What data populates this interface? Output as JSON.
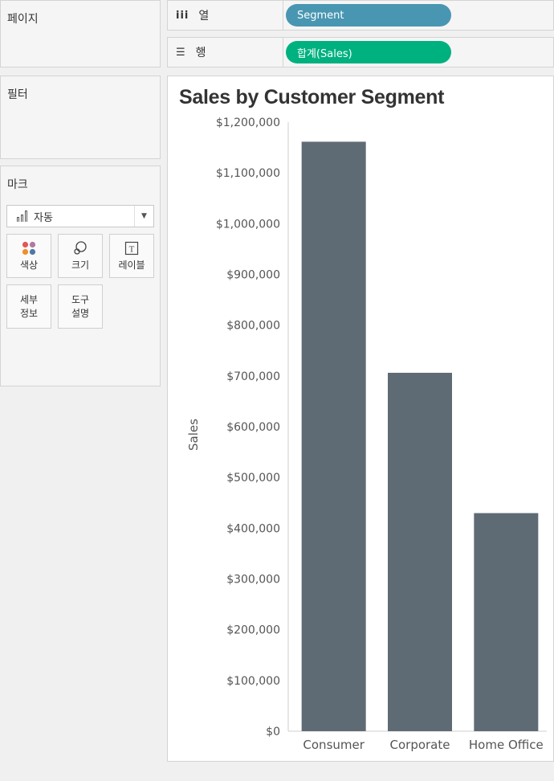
{
  "panels": {
    "pages_title": "페이지",
    "filters_title": "필터",
    "marks_title": "마크"
  },
  "marks": {
    "type_label": "자동",
    "buttons": {
      "color": "색상",
      "size": "크기",
      "label": "레이블",
      "detail_1": "세부",
      "detail_2": "정보",
      "tooltip_1": "도구",
      "tooltip_2": "설명"
    }
  },
  "shelves": {
    "columns_label": "열",
    "rows_label": "행",
    "columns_pill": "Segment",
    "rows_pill": "합계(Sales)",
    "columns_pill_color": "#4996b2",
    "rows_pill_color": "#00b180"
  },
  "chart_data": {
    "type": "bar",
    "title": "Sales by Customer Segment",
    "xlabel": "",
    "ylabel": "Sales",
    "categories": [
      "Consumer",
      "Corporate",
      "Home Office"
    ],
    "values": [
      1161401,
      706146,
      429653
    ],
    "ylim": [
      0,
      1200000
    ],
    "yticks": [
      0,
      100000,
      200000,
      300000,
      400000,
      500000,
      600000,
      700000,
      800000,
      900000,
      1000000,
      1100000,
      1200000
    ],
    "ytick_labels": [
      "$0",
      "$100,000",
      "$200,000",
      "$300,000",
      "$400,000",
      "$500,000",
      "$600,000",
      "$700,000",
      "$800,000",
      "$900,000",
      "$1,000,000",
      "$1,100,000",
      "$1,200,000"
    ],
    "bar_color": "#5f6b74",
    "grid": false
  }
}
